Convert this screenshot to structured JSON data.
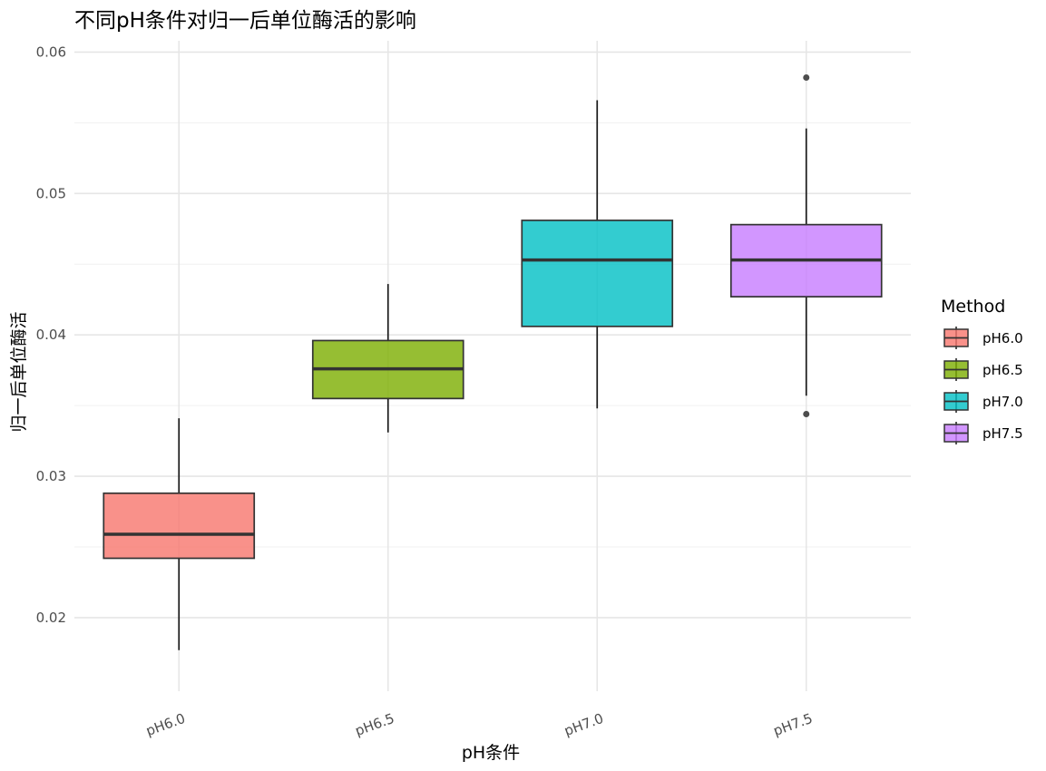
{
  "chart_data": {
    "type": "box",
    "title": "不同pH条件对归一后单位酶活的影响",
    "xlabel": "pH条件",
    "ylabel": "归一后单位酶活",
    "categories": [
      "pH6.0",
      "pH6.5",
      "pH7.0",
      "pH7.5"
    ],
    "ylim": [
      0.0148,
      0.0608
    ],
    "yticks": [
      0.02,
      0.03,
      0.04,
      0.05,
      0.06
    ],
    "ytick_labels": [
      "0.02",
      "0.03",
      "0.04",
      "0.05",
      "0.06"
    ],
    "grid": true,
    "legend": {
      "title": "Method",
      "position": "right",
      "entries": [
        "pH6.0",
        "pH6.5",
        "pH7.0",
        "pH7.5"
      ]
    },
    "colors": [
      "#F8766D",
      "#7CAE00",
      "#00BFC4",
      "#C77CFF"
    ],
    "boxes": [
      {
        "name": "pH6.0",
        "whisker_low": 0.0177,
        "q1": 0.0242,
        "median": 0.0259,
        "q3": 0.0288,
        "whisker_high": 0.0341,
        "outliers": []
      },
      {
        "name": "pH6.5",
        "whisker_low": 0.0331,
        "q1": 0.0355,
        "median": 0.0376,
        "q3": 0.0396,
        "whisker_high": 0.0436,
        "outliers": []
      },
      {
        "name": "pH7.0",
        "whisker_low": 0.0348,
        "q1": 0.0406,
        "median": 0.0453,
        "q3": 0.0481,
        "whisker_high": 0.0566,
        "outliers": []
      },
      {
        "name": "pH7.5",
        "whisker_low": 0.0357,
        "q1": 0.0427,
        "median": 0.0453,
        "q3": 0.0478,
        "whisker_high": 0.0546,
        "outliers": [
          0.0582,
          0.0344
        ]
      }
    ]
  }
}
